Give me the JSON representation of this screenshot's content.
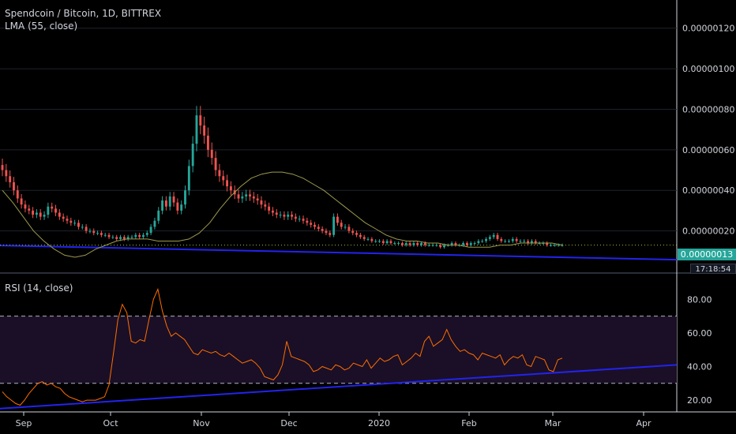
{
  "chart_data": [
    {
      "type": "candlestick",
      "title": "Spendcoin / Bitcoin, 1D, BITTREX",
      "indicator_label": "LMA (55, close)",
      "y_ticks": [
        "0.00000120",
        "0.00000100",
        "0.00000080",
        "0.00000060",
        "0.00000040",
        "0.00000020"
      ],
      "ylim": [
        0.0,
        1.3e-06
      ],
      "last_price_label": "0.00000013",
      "countdown_label": "17:18:54",
      "ohlc_close": [
        5e-07,
        4.7e-07,
        4.4e-07,
        4e-07,
        3.6e-07,
        3.3e-07,
        3.1e-07,
        3e-07,
        2.8e-07,
        2.9e-07,
        2.7e-07,
        2.8e-07,
        3.2e-07,
        3.1e-07,
        2.9e-07,
        2.7e-07,
        2.6e-07,
        2.5e-07,
        2.4e-07,
        2.4e-07,
        2.2e-07,
        2.2e-07,
        2e-07,
        2e-07,
        1.9e-07,
        1.9e-07,
        1.8e-07,
        1.8e-07,
        1.7e-07,
        1.7e-07,
        1.6e-07,
        1.7e-07,
        1.6e-07,
        1.7e-07,
        1.7e-07,
        1.8e-07,
        1.7e-07,
        1.8e-07,
        1.9e-07,
        2.2e-07,
        2.5e-07,
        3e-07,
        3.5e-07,
        3.2e-07,
        3.7e-07,
        3.4e-07,
        3e-07,
        3.3e-07,
        4e-07,
        5.2e-07,
        6.3e-07,
        7.7e-07,
        7.2e-07,
        6.7e-07,
        6e-07,
        5.6e-07,
        5e-07,
        4.7e-07,
        4.5e-07,
        4.2e-07,
        4e-07,
        3.8e-07,
        3.6e-07,
        3.7e-07,
        3.8e-07,
        3.7e-07,
        3.6e-07,
        3.5e-07,
        3.3e-07,
        3.2e-07,
        3e-07,
        2.9e-07,
        2.8e-07,
        2.8e-07,
        2.7e-07,
        2.8e-07,
        2.7e-07,
        2.6e-07,
        2.6e-07,
        2.5e-07,
        2.4e-07,
        2.3e-07,
        2.2e-07,
        2.1e-07,
        2e-07,
        1.9e-07,
        1.8e-07,
        2.7e-07,
        2.4e-07,
        2.2e-07,
        2.2e-07,
        2e-07,
        1.9e-07,
        1.8e-07,
        1.7e-07,
        1.6e-07,
        1.6e-07,
        1.5e-07,
        1.5e-07,
        1.5e-07,
        1.4e-07,
        1.5e-07,
        1.4e-07,
        1.4e-07,
        1.4e-07,
        1.3e-07,
        1.4e-07,
        1.3e-07,
        1.4e-07,
        1.3e-07,
        1.4e-07,
        1.3e-07,
        1.3e-07,
        1.3e-07,
        1.3e-07,
        1.2e-07,
        1.3e-07,
        1.3e-07,
        1.4e-07,
        1.3e-07,
        1.3e-07,
        1.4e-07,
        1.3e-07,
        1.4e-07,
        1.4e-07,
        1.5e-07,
        1.5e-07,
        1.6e-07,
        1.7e-07,
        1.8e-07,
        1.6e-07,
        1.5e-07,
        1.5e-07,
        1.5e-07,
        1.6e-07,
        1.5e-07,
        1.5e-07,
        1.5e-07,
        1.4e-07,
        1.5e-07,
        1.4e-07,
        1.4e-07,
        1.4e-07,
        1.3e-07,
        1.3e-07,
        1.3e-07,
        1.3e-07,
        1.3e-07
      ],
      "lma": [
        4e-07,
        3.4e-07,
        2.7e-07,
        2e-07,
        1.5e-07,
        1.1e-07,
        8e-08,
        7e-08,
        8e-08,
        1.1e-07,
        1.3e-07,
        1.5e-07,
        1.6e-07,
        1.6e-07,
        1.6e-07,
        1.5e-07,
        1.5e-07,
        1.5e-07,
        1.6e-07,
        1.9e-07,
        2.4e-07,
        3.1e-07,
        3.7e-07,
        4.2e-07,
        4.6e-07,
        4.8e-07,
        4.9e-07,
        4.9e-07,
        4.8e-07,
        4.6e-07,
        4.3e-07,
        4e-07,
        3.6e-07,
        3.2e-07,
        2.8e-07,
        2.4e-07,
        2.1e-07,
        1.8e-07,
        1.6e-07,
        1.5e-07,
        1.5e-07,
        1.4e-07,
        1.4e-07,
        1.3e-07,
        1.3e-07,
        1.2e-07,
        1.2e-07,
        1.2e-07,
        1.3e-07,
        1.3e-07,
        1.4e-07,
        1.4e-07,
        1.4e-07,
        1.4e-07,
        1.3e-07
      ],
      "support_line": [
        1.28e-07,
        5.8e-08
      ]
    },
    {
      "type": "line",
      "title": "RSI (14, close)",
      "y_ticks": [
        "80.00",
        "60.00",
        "40.00",
        "20.00"
      ],
      "ylim": [
        13,
        90
      ],
      "bands": [
        30,
        70
      ],
      "values": [
        25,
        22,
        20,
        18,
        17,
        20,
        24,
        27,
        30,
        31,
        29,
        30,
        28,
        27,
        24,
        22,
        21,
        20,
        19,
        20,
        20,
        20,
        21,
        22,
        29,
        48,
        68,
        77,
        72,
        55,
        54,
        56,
        55,
        68,
        80,
        86,
        73,
        64,
        58,
        60,
        58,
        56,
        52,
        48,
        47,
        50,
        49,
        48,
        49,
        47,
        46,
        48,
        46,
        44,
        42,
        43,
        44,
        42,
        39,
        34,
        33,
        32,
        35,
        41,
        55,
        46,
        45,
        44,
        43,
        41,
        37,
        38,
        40,
        39,
        38,
        41,
        40,
        38,
        39,
        42,
        41,
        40,
        44,
        39,
        42,
        45,
        43,
        44,
        46,
        47,
        41,
        43,
        45,
        48,
        46,
        55,
        58,
        52,
        54,
        56,
        62,
        56,
        52,
        49,
        50,
        48,
        47,
        44,
        48,
        47,
        46,
        45,
        47,
        41,
        44,
        46,
        45,
        47,
        41,
        40,
        46,
        45,
        44,
        38,
        37,
        44,
        45
      ],
      "support_line": [
        15,
        41
      ]
    }
  ],
  "x_axis_labels": [
    "Sep",
    "Oct",
    "Nov",
    "Dec",
    "2020",
    "Feb",
    "Mar",
    "Apr"
  ],
  "colors": {
    "up": "#26a69a",
    "down": "#ef5350",
    "lma": "#9d9a4b",
    "rsi": "#ff6d00",
    "trendline": "#2323ee",
    "rsi_band_fill": "#1a0f26",
    "grid": "#1e222d"
  }
}
